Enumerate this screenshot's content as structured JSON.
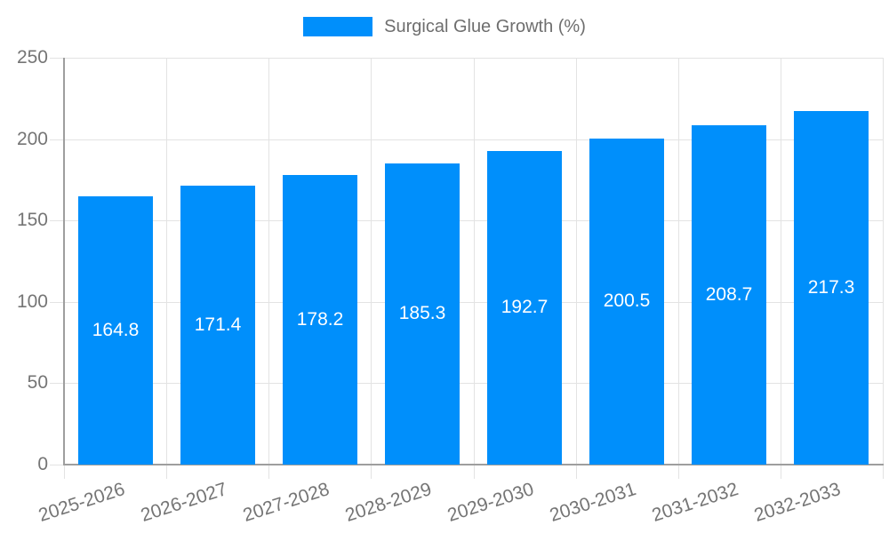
{
  "chart_data": {
    "type": "bar",
    "title": "",
    "legend": "Surgical Glue Growth (%)",
    "legend_position": "top",
    "categories": [
      "2025-2026",
      "2026-2027",
      "2027-2028",
      "2028-2029",
      "2029-2030",
      "2030-2031",
      "2031-2032",
      "2032-2033"
    ],
    "values": [
      164.8,
      171.4,
      178.2,
      185.3,
      192.7,
      200.5,
      208.7,
      217.3
    ],
    "value_labels": [
      "164.8",
      "171.4",
      "178.2",
      "185.3",
      "192.7",
      "200.5",
      "208.7",
      "217.3"
    ],
    "xlabel": "",
    "ylabel": "",
    "ylim": [
      0,
      250
    ],
    "yticks": [
      0,
      50,
      100,
      150,
      200,
      250
    ],
    "ytick_labels": [
      "0",
      "50",
      "100",
      "150",
      "200",
      "250"
    ],
    "grid": true,
    "colors": {
      "bar": "#008FFB",
      "grid": "#e3e3e3",
      "axis_line": "#9e9e9e",
      "axis_text": "#757575",
      "legend_text": "#6e6e6e",
      "value_text": "#ffffff",
      "background": "#ffffff"
    }
  }
}
